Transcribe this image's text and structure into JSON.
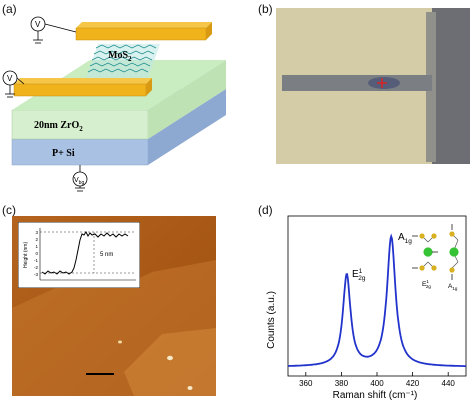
{
  "panels": {
    "a": {
      "tag": "(a)",
      "labels": {
        "mos2": "MoS",
        "mos2_sub": "2",
        "zro2": "20nm ZrO",
        "zro2_sub": "2",
        "psi": "P+ Si",
        "v1": "V",
        "v2": "V",
        "vbg": "V",
        "vbg_sub": "bg"
      }
    },
    "b": {
      "tag": "(b)"
    },
    "c": {
      "tag": "(c)",
      "inset": {
        "ylabel": "Height (nm)",
        "yticks": [
          "3",
          "2",
          "1",
          "0",
          "-1",
          "-2",
          "-3"
        ],
        "step_label": "5 nm"
      }
    },
    "d": {
      "tag": "(d)",
      "mode_e": "E",
      "mode_e_sup": "1",
      "mode_e_sub": "2g",
      "mode_a": "A",
      "mode_a_sub": "1g",
      "schem_e": "E",
      "schem_e_sup": "1",
      "schem_e_sub": "2g",
      "schem_a": "A",
      "schem_a_sub": "1g"
    }
  },
  "chart_data": {
    "type": "line",
    "xlabel": "Raman shift (cm⁻¹)",
    "ylabel": "Counts (a.u.)",
    "xlim": [
      350,
      450
    ],
    "ylim": [
      0,
      1.05
    ],
    "xticks": [
      360,
      380,
      400,
      420,
      440
    ],
    "color": "#2233cc",
    "peaks": [
      {
        "label": "E12g",
        "center": 383,
        "height": 0.6,
        "hwhm": 2.6
      },
      {
        "label": "A1g",
        "center": 408,
        "height": 0.85,
        "hwhm": 2.9
      }
    ],
    "baseline": 0.06,
    "grid": false
  }
}
